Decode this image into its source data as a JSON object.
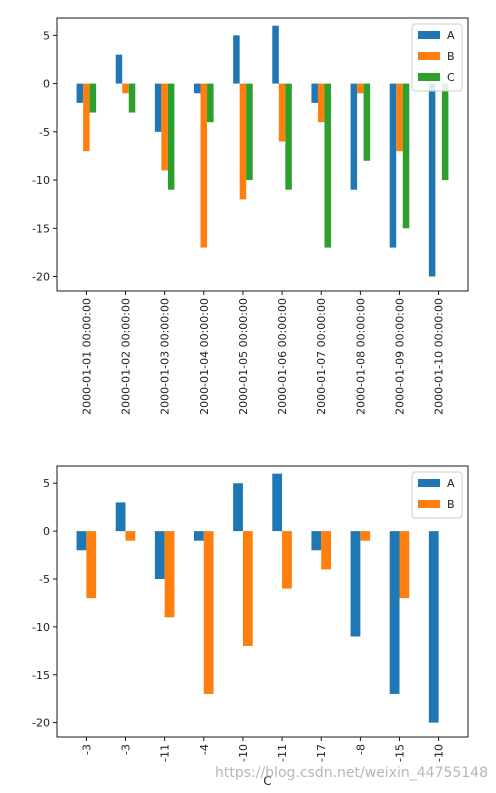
{
  "colors": {
    "A": "#1f77b4",
    "B": "#ff7f0e",
    "C": "#2ca02c"
  },
  "watermark": "https://blog.csdn.net/weixin_44755148",
  "chart_data": [
    {
      "type": "bar",
      "categories": [
        "2000-01-01 00:00:00",
        "2000-01-02 00:00:00",
        "2000-01-03 00:00:00",
        "2000-01-04 00:00:00",
        "2000-01-05 00:00:00",
        "2000-01-06 00:00:00",
        "2000-01-07 00:00:00",
        "2000-01-08 00:00:00",
        "2000-01-09 00:00:00",
        "2000-01-10 00:00:00"
      ],
      "series": [
        {
          "name": "A",
          "values": [
            -2,
            3,
            -5,
            -1,
            5,
            6,
            -2,
            -11,
            -17,
            -20
          ]
        },
        {
          "name": "B",
          "values": [
            -7,
            -1,
            -9,
            -17,
            -12,
            -6,
            -4,
            -1,
            -7,
            0
          ]
        },
        {
          "name": "C",
          "values": [
            -3,
            -3,
            -11,
            -4,
            -10,
            -11,
            -17,
            -8,
            -15,
            -10
          ]
        }
      ],
      "yticks": [
        5,
        0,
        -5,
        -10,
        -15,
        -20
      ],
      "ylim": [
        -21.5,
        6.8
      ],
      "xlabel": "",
      "ylabel": "",
      "grid": false,
      "legend": "top-right",
      "category_rotation": 90
    },
    {
      "type": "bar",
      "categories": [
        "-3",
        "-3",
        "-11",
        "-4",
        "-10",
        "-11",
        "-17",
        "-8",
        "-15",
        "-10"
      ],
      "series": [
        {
          "name": "A",
          "values": [
            -2,
            3,
            -5,
            -1,
            5,
            6,
            -2,
            -11,
            -17,
            -20
          ]
        },
        {
          "name": "B",
          "values": [
            -7,
            -1,
            -9,
            -17,
            -12,
            -6,
            -4,
            -1,
            -7,
            0
          ]
        }
      ],
      "yticks": [
        5,
        0,
        -5,
        -10,
        -15,
        -20
      ],
      "ylim": [
        -21.5,
        6.8
      ],
      "xlabel": "C",
      "ylabel": "",
      "grid": false,
      "legend": "top-right",
      "category_rotation": 90
    }
  ]
}
